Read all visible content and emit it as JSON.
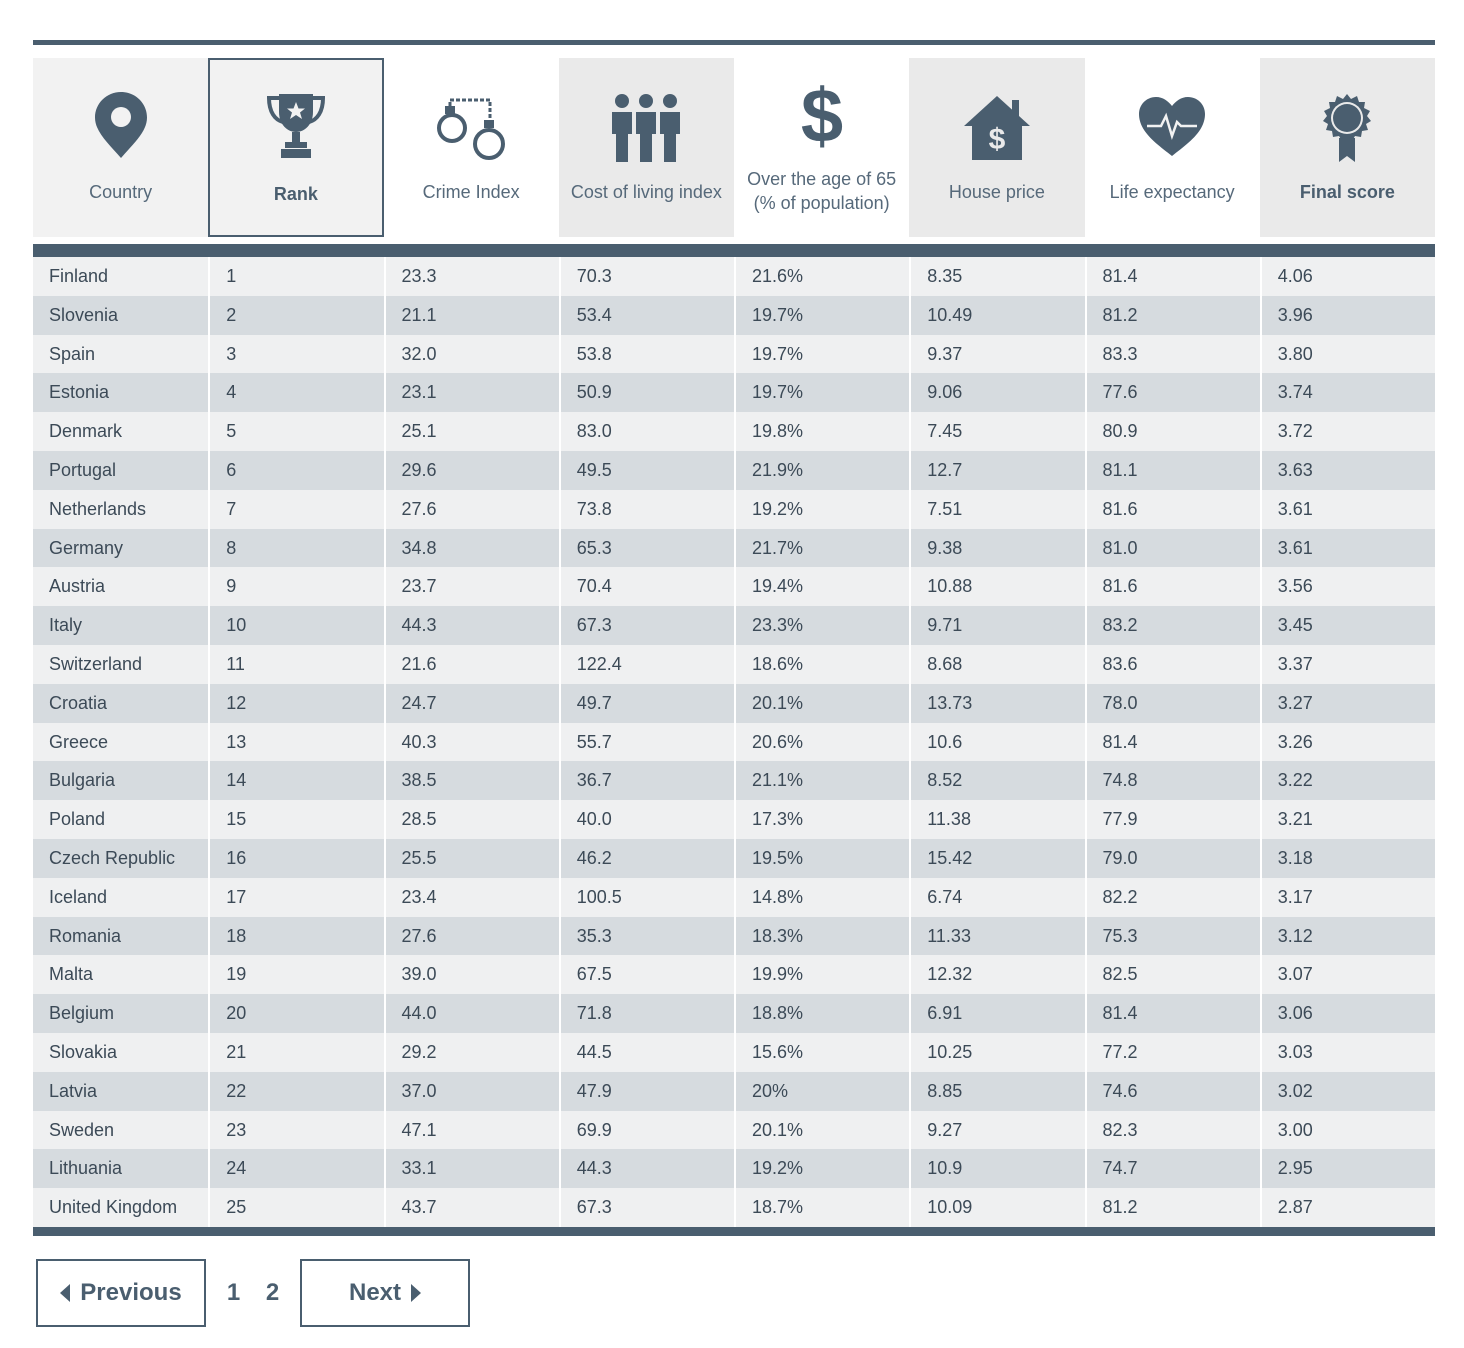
{
  "headers": [
    {
      "label": "Country",
      "icon": "map-pin-icon",
      "bold": false
    },
    {
      "label": "Rank",
      "icon": "trophy-icon",
      "bold": true
    },
    {
      "label": "Crime Index",
      "icon": "handcuffs-icon",
      "bold": false
    },
    {
      "label": "Cost of living index",
      "icon": "people-icon",
      "bold": false
    },
    {
      "label": "Over the age of 65 (% of population)",
      "icon": "dollar-icon",
      "bold": false
    },
    {
      "label": "House price",
      "icon": "house-dollar-icon",
      "bold": false
    },
    {
      "label": "Life expectancy",
      "icon": "heart-pulse-icon",
      "bold": false
    },
    {
      "label": "Final score",
      "icon": "award-ribbon-icon",
      "bold": true
    }
  ],
  "rows": [
    [
      "Finland",
      "1",
      "23.3",
      "70.3",
      "21.6%",
      "8.35",
      "81.4",
      "4.06"
    ],
    [
      "Slovenia",
      "2",
      "21.1",
      "53.4",
      "19.7%",
      "10.49",
      "81.2",
      "3.96"
    ],
    [
      "Spain",
      "3",
      "32.0",
      "53.8",
      "19.7%",
      "9.37",
      "83.3",
      "3.80"
    ],
    [
      "Estonia",
      "4",
      "23.1",
      "50.9",
      "19.7%",
      "9.06",
      "77.6",
      "3.74"
    ],
    [
      "Denmark",
      "5",
      "25.1",
      "83.0",
      "19.8%",
      "7.45",
      "80.9",
      "3.72"
    ],
    [
      "Portugal",
      "6",
      "29.6",
      "49.5",
      "21.9%",
      "12.7",
      "81.1",
      "3.63"
    ],
    [
      "Netherlands",
      "7",
      "27.6",
      "73.8",
      "19.2%",
      "7.51",
      "81.6",
      "3.61"
    ],
    [
      "Germany",
      "8",
      "34.8",
      "65.3",
      "21.7%",
      "9.38",
      "81.0",
      "3.61"
    ],
    [
      "Austria",
      "9",
      "23.7",
      "70.4",
      "19.4%",
      "10.88",
      "81.6",
      "3.56"
    ],
    [
      "Italy",
      "10",
      "44.3",
      "67.3",
      "23.3%",
      "9.71",
      "83.2",
      "3.45"
    ],
    [
      "Switzerland",
      "11",
      "21.6",
      "122.4",
      "18.6%",
      "8.68",
      "83.6",
      "3.37"
    ],
    [
      "Croatia",
      "12",
      "24.7",
      "49.7",
      "20.1%",
      "13.73",
      "78.0",
      "3.27"
    ],
    [
      "Greece",
      "13",
      "40.3",
      "55.7",
      "20.6%",
      "10.6",
      "81.4",
      "3.26"
    ],
    [
      "Bulgaria",
      "14",
      "38.5",
      "36.7",
      "21.1%",
      "8.52",
      "74.8",
      "3.22"
    ],
    [
      "Poland",
      "15",
      "28.5",
      "40.0",
      "17.3%",
      "11.38",
      "77.9",
      "3.21"
    ],
    [
      "Czech Republic",
      "16",
      "25.5",
      "46.2",
      "19.5%",
      "15.42",
      "79.0",
      "3.18"
    ],
    [
      "Iceland",
      "17",
      "23.4",
      "100.5",
      "14.8%",
      "6.74",
      "82.2",
      "3.17"
    ],
    [
      "Romania",
      "18",
      "27.6",
      "35.3",
      "18.3%",
      "11.33",
      "75.3",
      "3.12"
    ],
    [
      "Malta",
      "19",
      "39.0",
      "67.5",
      "19.9%",
      "12.32",
      "82.5",
      "3.07"
    ],
    [
      "Belgium",
      "20",
      "44.0",
      "71.8",
      "18.8%",
      "6.91",
      "81.4",
      "3.06"
    ],
    [
      "Slovakia",
      "21",
      "29.2",
      "44.5",
      "15.6%",
      "10.25",
      "77.2",
      "3.03"
    ],
    [
      "Latvia",
      "22",
      "37.0",
      "47.9",
      "20%",
      "8.85",
      "74.6",
      "3.02"
    ],
    [
      "Sweden",
      "23",
      "47.1",
      "69.9",
      "20.1%",
      "9.27",
      "82.3",
      "3.00"
    ],
    [
      "Lithuania",
      "24",
      "33.1",
      "44.3",
      "19.2%",
      "10.9",
      "74.7",
      "2.95"
    ],
    [
      "United Kingdom",
      "25",
      "43.7",
      "67.3",
      "18.7%",
      "10.09",
      "81.2",
      "2.87"
    ]
  ],
  "pagination": {
    "previous_label": "Previous",
    "next_label": "Next",
    "pages": [
      "1",
      "2"
    ]
  },
  "colors": {
    "accent": "#4a5e6f",
    "row_odd": "#eff0f1",
    "row_even": "#d6dbdf"
  }
}
